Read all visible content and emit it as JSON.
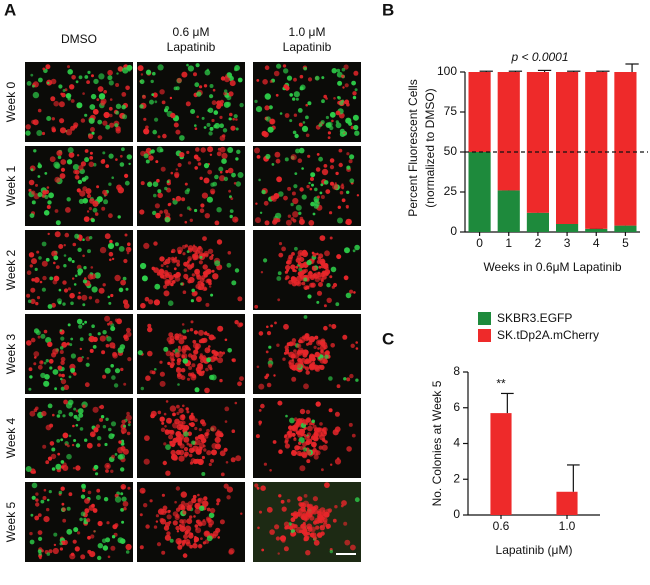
{
  "panel_a": {
    "label": "A",
    "columns": [
      [
        "DMSO"
      ],
      [
        "0.6 μM",
        "Lapatinib"
      ],
      [
        "1.0 μM",
        "Lapatinib"
      ]
    ],
    "rows": [
      "Week 0",
      "Week 1",
      "Week 2",
      "Week 3",
      "Week 4",
      "Week 5"
    ]
  },
  "chart_data": [
    {
      "type": "bar",
      "label": "B",
      "stacked": true,
      "y_label": [
        "Percent Fluorescent Cells",
        "(normalized to DMSO)"
      ],
      "x_label": "Weeks in 0.6μM Lapatinib",
      "annotation": "p < 0.0001",
      "categories": [
        "0",
        "1",
        "2",
        "3",
        "4",
        "5"
      ],
      "series": [
        {
          "name": "SKBR3.EGFP",
          "color": "#1e8a3c",
          "values": [
            50,
            26,
            12,
            5,
            2,
            4
          ],
          "errors": [
            0.5,
            0.5,
            0.5,
            0.5,
            0.3,
            1
          ]
        },
        {
          "name": "SK.tDp2A.mCherry",
          "color": "#ee2a2a",
          "values": [
            50,
            74,
            88,
            95,
            98,
            96
          ],
          "errors": [
            0.5,
            0.5,
            1,
            0.5,
            0.5,
            5
          ]
        }
      ],
      "reference_line": 50,
      "ylim": [
        0,
        105
      ],
      "yticks": [
        0,
        25,
        50,
        75,
        100
      ],
      "legend": "below"
    },
    {
      "type": "bar",
      "label": "C",
      "y_label": [
        "No. Colonies at Week 5"
      ],
      "x_label": "Lapatinib (μM)",
      "annotation": "**",
      "categories": [
        "0.6",
        "1.0"
      ],
      "values": [
        5.7,
        1.3
      ],
      "errors": [
        1.1,
        1.5
      ],
      "color": "#ee2a2a",
      "ylim": [
        0,
        8
      ],
      "yticks": [
        0,
        2,
        4,
        6,
        8
      ]
    }
  ]
}
